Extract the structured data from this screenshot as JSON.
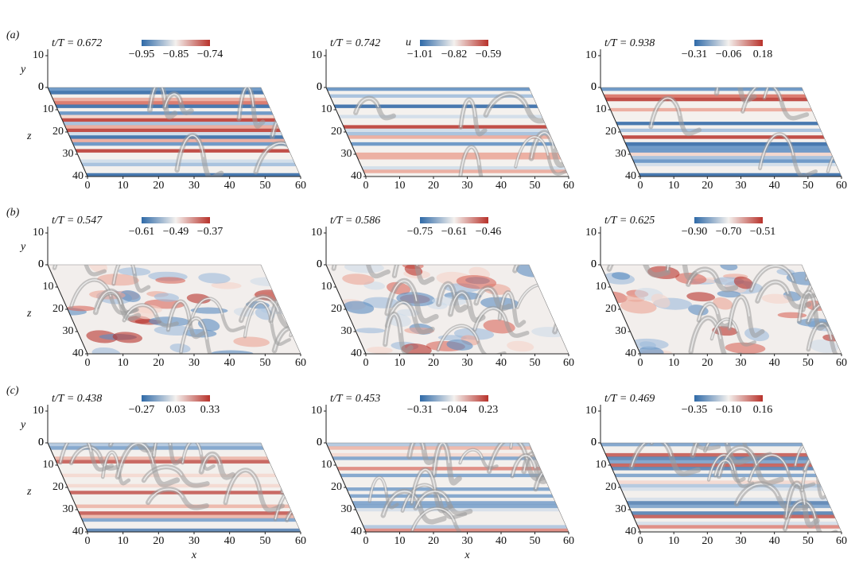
{
  "rows": [
    {
      "label": "(a)",
      "panels": [
        {
          "time": "t/T = 0.672",
          "colorbar": [
            "−0.95",
            "−0.85",
            "−0.74"
          ]
        },
        {
          "time": "t/T = 0.742",
          "variable": "u",
          "colorbar": [
            "−1.01",
            "−0.82",
            "−0.59"
          ]
        },
        {
          "time": "t/T = 0.938",
          "colorbar": [
            "−0.31",
            "−0.06",
            "0.18"
          ]
        }
      ]
    },
    {
      "label": "(b)",
      "panels": [
        {
          "time": "t/T = 0.547",
          "colorbar": [
            "−0.61",
            "−0.49",
            "−0.37"
          ]
        },
        {
          "time": "t/T = 0.586",
          "colorbar": [
            "−0.75",
            "−0.61",
            "−0.46"
          ]
        },
        {
          "time": "t/T = 0.625",
          "colorbar": [
            "−0.90",
            "−0.70",
            "−0.51"
          ]
        }
      ]
    },
    {
      "label": "(c)",
      "panels": [
        {
          "time": "t/T = 0.438",
          "colorbar": [
            "−0.27",
            "0.03",
            "0.33"
          ]
        },
        {
          "time": "t/T = 0.453",
          "colorbar": [
            "−0.31",
            "−0.04",
            "0.23"
          ]
        },
        {
          "time": "t/T = 0.469",
          "colorbar": [
            "−0.35",
            "−0.10",
            "0.16"
          ]
        }
      ]
    }
  ],
  "axes": {
    "x_label": "x",
    "y_label": "y",
    "z_label": "z",
    "x_ticks": [
      0,
      10,
      20,
      30,
      40,
      50,
      60
    ],
    "y_ticks": [
      0,
      10
    ],
    "z_ticks": [
      0,
      10,
      20,
      30,
      40
    ]
  }
}
